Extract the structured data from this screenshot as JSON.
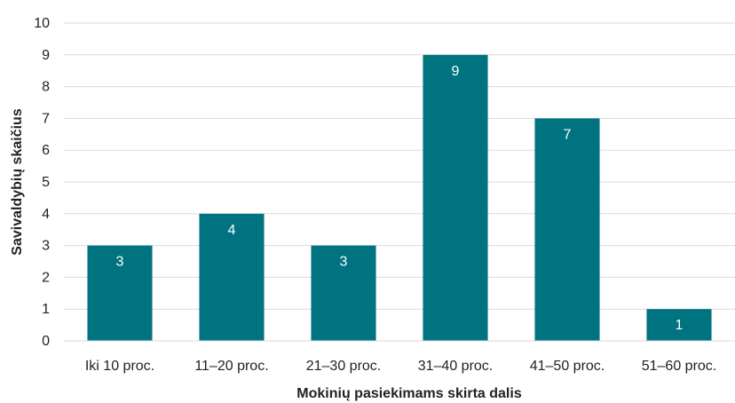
{
  "chart_data": {
    "type": "bar",
    "title": "",
    "xlabel": "Mokinių pasiekimams skirta dalis",
    "ylabel": "Savivaldybių skaičius",
    "categories": [
      "Iki 10 proc.",
      "11–20 proc.",
      "21–30 proc.",
      "31–40 proc.",
      "41–50 proc.",
      "51–60 proc."
    ],
    "values": [
      3,
      4,
      3,
      9,
      7,
      1
    ],
    "data_labels": [
      "3",
      "4",
      "3",
      "9",
      "7",
      "1"
    ],
    "ylim": [
      0,
      10
    ],
    "yticks": [
      "0",
      "1",
      "2",
      "3",
      "4",
      "5",
      "6",
      "7",
      "8",
      "9",
      "10"
    ],
    "grid": true,
    "legend": "none",
    "colors": {
      "bar": "#007380",
      "grid": "#d9d9d9",
      "text": "#222222",
      "label": "#ffffff"
    }
  }
}
